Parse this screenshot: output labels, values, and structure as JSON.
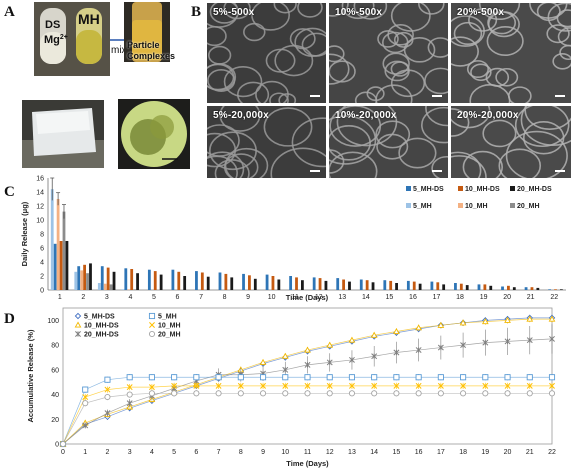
{
  "panels": {
    "a": "A",
    "b": "B",
    "c": "C",
    "d": "D"
  },
  "panel_a": {
    "vial_label_1": "DS",
    "vial_label_2": "Mg",
    "vial_label_2_sup": "2+",
    "vial_label_3": "MH",
    "arrow_label": "mix",
    "result_label_1": "Particle",
    "result_label_2": "Complexes"
  },
  "sem_images": [
    {
      "label": "5%-500x"
    },
    {
      "label": "10%-500x"
    },
    {
      "label": "20%-500x"
    },
    {
      "label": "5%-20,000x"
    },
    {
      "label": "10%-20,000x"
    },
    {
      "label": "20%-20,000x"
    }
  ],
  "chart_data": [
    {
      "type": "bar",
      "xlabel": "Time (Days)",
      "ylabel": "Daily Release (μg)",
      "ylim": [
        0,
        16
      ],
      "yticks": [
        0,
        2,
        4,
        6,
        8,
        10,
        12,
        14,
        16
      ],
      "grid": false,
      "legend_position": "top-right",
      "categories": [
        "1",
        "2",
        "3",
        "4",
        "5",
        "6",
        "7",
        "8",
        "9",
        "10",
        "11",
        "12",
        "13",
        "14",
        "15",
        "16",
        "17",
        "18",
        "19",
        "20",
        "21",
        "22"
      ],
      "series": [
        {
          "name": "5_MH-DS",
          "color": "#2e75b6",
          "values": [
            6.6,
            3.4,
            3.4,
            3.1,
            2.9,
            2.9,
            2.7,
            2.5,
            2.3,
            2.2,
            2.0,
            1.8,
            1.7,
            1.5,
            1.4,
            1.3,
            1.2,
            1.0,
            0.8,
            0.5,
            0.4,
            0.1
          ]
        },
        {
          "name": "10_MH-DS",
          "color": "#c55a11",
          "values": [
            7.0,
            3.6,
            3.2,
            3.0,
            2.7,
            2.6,
            2.5,
            2.3,
            2.1,
            2.0,
            1.8,
            1.7,
            1.5,
            1.4,
            1.3,
            1.2,
            1.1,
            0.9,
            0.8,
            0.6,
            0.4,
            0.1
          ]
        },
        {
          "name": "20_MH-DS",
          "color": "#1a1a1a",
          "values": [
            7.0,
            3.8,
            2.6,
            2.4,
            2.2,
            2.0,
            1.9,
            1.8,
            1.6,
            1.5,
            1.4,
            1.3,
            1.2,
            1.1,
            1.0,
            0.9,
            0.8,
            0.7,
            0.6,
            0.4,
            0.3,
            0.1
          ]
        },
        {
          "name": "5_MH",
          "color": "#9dc3e6",
          "values": [
            14.4,
            2.6,
            1.0,
            0.1,
            0,
            0,
            0,
            0,
            0,
            0,
            0,
            0,
            0,
            0,
            0,
            0,
            0,
            0,
            0,
            0,
            0,
            0
          ]
        },
        {
          "name": "10_MH",
          "color": "#f4b183",
          "values": [
            13.0,
            2.8,
            0.9,
            0.1,
            0,
            0,
            0,
            0,
            0,
            0,
            0,
            0,
            0,
            0,
            0,
            0,
            0,
            0,
            0,
            0,
            0,
            0
          ]
        },
        {
          "name": "20_MH",
          "color": "#8c8c8c",
          "values": [
            11.2,
            2.4,
            0.8,
            0.1,
            0,
            0,
            0,
            0,
            0,
            0,
            0,
            0,
            0,
            0,
            0,
            0,
            0,
            0,
            0,
            0,
            0,
            0
          ]
        }
      ]
    },
    {
      "type": "line",
      "xlabel": "Time (Days)",
      "ylabel": "Accumulative Release (%)",
      "xlim": [
        0,
        22
      ],
      "ylim": [
        0,
        110
      ],
      "xticks": [
        0,
        1,
        2,
        3,
        4,
        5,
        6,
        7,
        8,
        9,
        10,
        11,
        12,
        13,
        14,
        15,
        16,
        17,
        18,
        19,
        20,
        21,
        22
      ],
      "yticks": [
        0,
        20,
        40,
        60,
        80,
        100
      ],
      "grid": false,
      "legend_position": "top-left",
      "x": [
        0,
        1,
        2,
        3,
        4,
        5,
        6,
        7,
        8,
        9,
        10,
        11,
        12,
        13,
        14,
        15,
        16,
        17,
        18,
        19,
        20,
        21,
        22
      ],
      "series": [
        {
          "name": "5_MH-DS",
          "color": "#4472c4",
          "marker": "diamond",
          "values": [
            0,
            16,
            22,
            29,
            35,
            41,
            47,
            53,
            59,
            65,
            70,
            75,
            79,
            83,
            87,
            90,
            93,
            96,
            98,
            100,
            101,
            102,
            102
          ]
        },
        {
          "name": "10_MH-DS",
          "color": "#f2b800",
          "marker": "triangle",
          "values": [
            0,
            17,
            24,
            30,
            36,
            42,
            48,
            54,
            60,
            66,
            71,
            76,
            80,
            84,
            88,
            91,
            94,
            96,
            98,
            99,
            100,
            101,
            101
          ]
        },
        {
          "name": "20_MH-DS",
          "color": "#7f7f7f",
          "marker": "cross",
          "values": [
            0,
            15,
            25,
            33,
            39,
            45,
            51,
            56,
            56,
            57,
            60,
            64,
            66,
            68,
            71,
            74,
            76,
            78,
            80,
            82,
            83,
            84,
            85
          ]
        },
        {
          "name": "5_MH",
          "color": "#5b9bd5",
          "marker": "square",
          "values": [
            0,
            44,
            52,
            54,
            54,
            54,
            54,
            54,
            54,
            54,
            54,
            54,
            54,
            54,
            54,
            54,
            54,
            54,
            54,
            54,
            54,
            54,
            54
          ]
        },
        {
          "name": "10_MH",
          "color": "#ffc000",
          "marker": "x",
          "values": [
            0,
            38,
            44,
            46,
            46,
            47,
            47,
            47,
            47,
            47,
            47,
            47,
            47,
            47,
            47,
            47,
            47,
            47,
            47,
            47,
            47,
            47,
            47
          ]
        },
        {
          "name": "20_MH",
          "color": "#a5a5a5",
          "marker": "circle",
          "values": [
            0,
            33,
            38,
            40,
            41,
            41,
            41,
            41,
            41,
            41,
            41,
            41,
            41,
            41,
            41,
            41,
            41,
            41,
            41,
            41,
            41,
            41,
            41
          ]
        }
      ]
    }
  ]
}
